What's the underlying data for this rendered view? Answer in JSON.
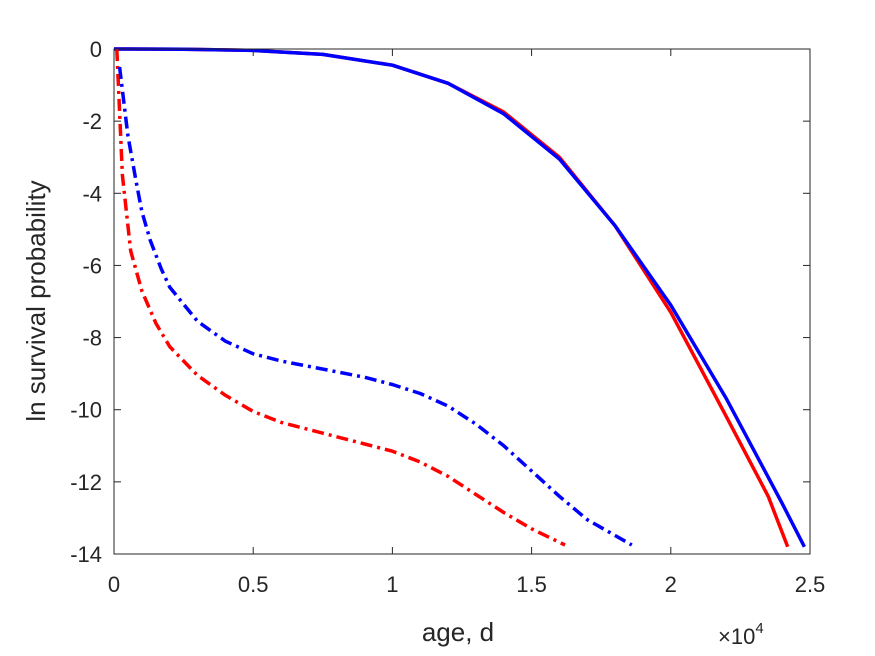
{
  "chart_data": {
    "type": "line",
    "xlabel": "age, d",
    "ylabel": "ln survival probability",
    "x_exponent_label": "×10",
    "x_exponent_power": "4",
    "x_multiplier": 10000,
    "xlim": [
      0,
      2.5
    ],
    "ylim": [
      -14,
      0
    ],
    "xticks": [
      0,
      0.5,
      1,
      1.5,
      2,
      2.5
    ],
    "xtick_labels": [
      "0",
      "0.5",
      "1",
      "1.5",
      "2",
      "2.5"
    ],
    "yticks": [
      0,
      -2,
      -4,
      -6,
      -8,
      -10,
      -12,
      -14
    ],
    "ytick_labels": [
      "0",
      "-2",
      "-4",
      "-6",
      "-8",
      "-10",
      "-12",
      "-14"
    ],
    "grid": false,
    "series": [
      {
        "color": "#ff0000",
        "style": "solid",
        "points": [
          [
            0,
            0
          ],
          [
            0.25,
            -0.005
          ],
          [
            0.5,
            -0.04
          ],
          [
            0.75,
            -0.15
          ],
          [
            1.0,
            -0.45
          ],
          [
            1.2,
            -0.95
          ],
          [
            1.4,
            -1.75
          ],
          [
            1.6,
            -3.0
          ],
          [
            1.8,
            -4.9
          ],
          [
            2.0,
            -7.3
          ],
          [
            2.2,
            -10.2
          ],
          [
            2.35,
            -12.4
          ],
          [
            2.42,
            -13.8
          ]
        ]
      },
      {
        "color": "#0000ff",
        "style": "solid",
        "points": [
          [
            0,
            0
          ],
          [
            0.25,
            -0.005
          ],
          [
            0.5,
            -0.04
          ],
          [
            0.75,
            -0.15
          ],
          [
            1.0,
            -0.45
          ],
          [
            1.2,
            -0.95
          ],
          [
            1.4,
            -1.8
          ],
          [
            1.6,
            -3.05
          ],
          [
            1.8,
            -4.9
          ],
          [
            2.0,
            -7.1
          ],
          [
            2.2,
            -9.7
          ],
          [
            2.4,
            -12.6
          ],
          [
            2.48,
            -13.8
          ]
        ]
      },
      {
        "color": "#ff0000",
        "style": "dashdot",
        "points": [
          [
            0.01,
            0
          ],
          [
            0.03,
            -3.5
          ],
          [
            0.06,
            -5.6
          ],
          [
            0.1,
            -6.7
          ],
          [
            0.15,
            -7.6
          ],
          [
            0.2,
            -8.25
          ],
          [
            0.3,
            -9.05
          ],
          [
            0.4,
            -9.6
          ],
          [
            0.5,
            -10.05
          ],
          [
            0.6,
            -10.35
          ],
          [
            0.7,
            -10.55
          ],
          [
            0.8,
            -10.75
          ],
          [
            0.9,
            -10.95
          ],
          [
            1.0,
            -11.15
          ],
          [
            1.1,
            -11.45
          ],
          [
            1.2,
            -11.85
          ],
          [
            1.3,
            -12.35
          ],
          [
            1.4,
            -12.85
          ],
          [
            1.5,
            -13.3
          ],
          [
            1.62,
            -13.75
          ]
        ]
      },
      {
        "color": "#0000ff",
        "style": "dashdot",
        "points": [
          [
            0.02,
            -0.5
          ],
          [
            0.05,
            -2.4
          ],
          [
            0.08,
            -3.7
          ],
          [
            0.1,
            -4.5
          ],
          [
            0.13,
            -5.3
          ],
          [
            0.17,
            -6.1
          ],
          [
            0.2,
            -6.6
          ],
          [
            0.3,
            -7.55
          ],
          [
            0.4,
            -8.1
          ],
          [
            0.5,
            -8.45
          ],
          [
            0.6,
            -8.65
          ],
          [
            0.7,
            -8.8
          ],
          [
            0.8,
            -8.95
          ],
          [
            0.9,
            -9.1
          ],
          [
            1.0,
            -9.3
          ],
          [
            1.1,
            -9.55
          ],
          [
            1.2,
            -9.9
          ],
          [
            1.3,
            -10.4
          ],
          [
            1.4,
            -11.0
          ],
          [
            1.5,
            -11.7
          ],
          [
            1.6,
            -12.4
          ],
          [
            1.7,
            -13.05
          ],
          [
            1.86,
            -13.75
          ]
        ]
      }
    ]
  }
}
